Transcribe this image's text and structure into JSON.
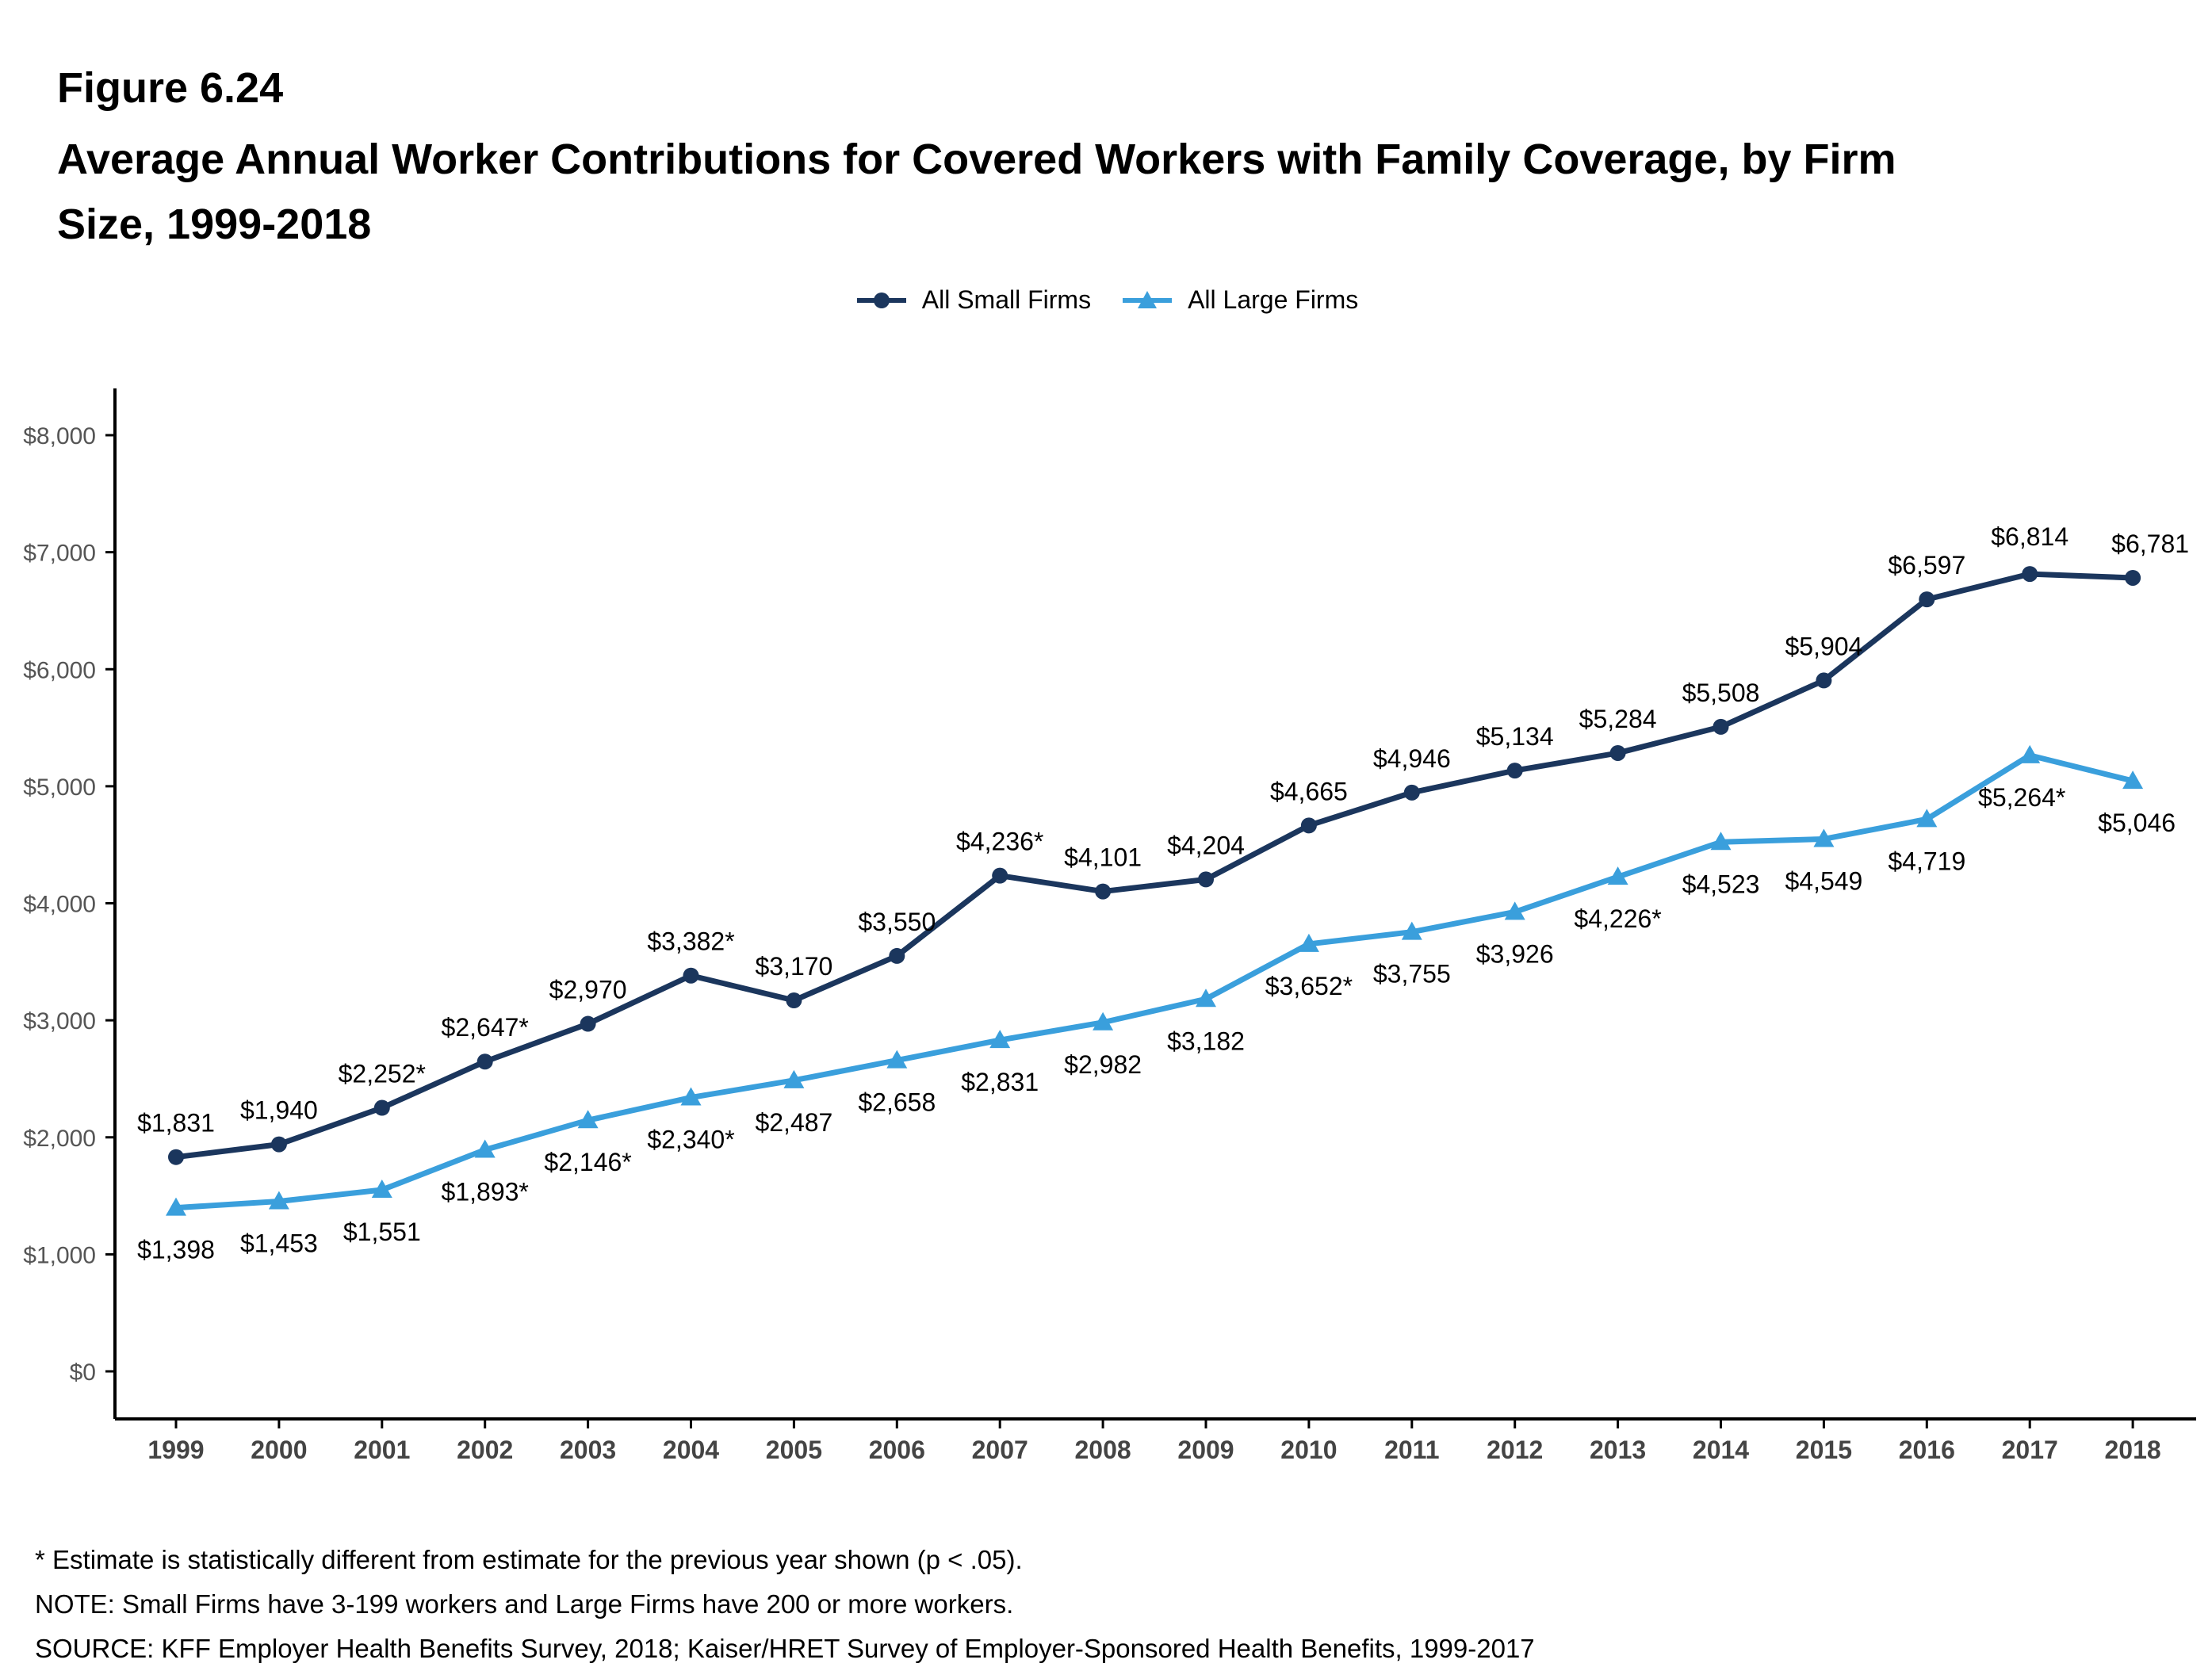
{
  "figure_label": "Figure 6.24",
  "title": "Average Annual Worker Contributions for Covered Workers with Family Coverage, by Firm Size, 1999-2018",
  "notes": [
    "* Estimate is statistically different from estimate for the previous year shown (p < .05).",
    "NOTE: Small Firms have 3-199 workers and Large Firms have 200 or more workers.",
    "SOURCE: KFF Employer Health Benefits Survey, 2018; Kaiser/HRET Survey of Employer-Sponsored Health Benefits, 1999-2017"
  ],
  "chart_data": {
    "type": "line",
    "x": [
      "1999",
      "2000",
      "2001",
      "2002",
      "2003",
      "2004",
      "2005",
      "2006",
      "2007",
      "2008",
      "2009",
      "2010",
      "2011",
      "2012",
      "2013",
      "2014",
      "2015",
      "2016",
      "2017",
      "2018"
    ],
    "y_ticks": [
      "$0",
      "$1,000",
      "$2,000",
      "$3,000",
      "$4,000",
      "$5,000",
      "$6,000",
      "$7,000",
      "$8,000"
    ],
    "ylim": [
      0,
      8000
    ],
    "grid": false,
    "legend_position": "top-center",
    "series": [
      {
        "name": "All Small Firms",
        "color": "#1b365d",
        "marker": "circle",
        "values": [
          1831,
          1940,
          2252,
          2647,
          2970,
          3382,
          3170,
          3550,
          4236,
          4101,
          4204,
          4665,
          4946,
          5134,
          5284,
          5508,
          5904,
          6597,
          6814,
          6781
        ],
        "labels": [
          "$1,831",
          "$1,940",
          "$2,252*",
          "$2,647*",
          "$2,970",
          "$3,382*",
          "$3,170",
          "$3,550",
          "$4,236*",
          "$4,101",
          "$4,204",
          "$4,665",
          "$4,946",
          "$5,134",
          "$5,284",
          "$5,508",
          "$5,904",
          "$6,597",
          "$6,814",
          "$6,781"
        ]
      },
      {
        "name": "All Large Firms",
        "color": "#3a9fdc",
        "marker": "triangle",
        "values": [
          1398,
          1453,
          1551,
          1893,
          2146,
          2340,
          2487,
          2658,
          2831,
          2982,
          3182,
          3652,
          3755,
          3926,
          4226,
          4523,
          4549,
          4719,
          5264,
          5046
        ],
        "labels": [
          "$1,398",
          "$1,453",
          "$1,551",
          "$1,893*",
          "$2,146*",
          "$2,340*",
          "$2,487",
          "$2,658",
          "$2,831",
          "$2,982",
          "$3,182",
          "$3,652*",
          "$3,755",
          "$3,926",
          "$4,226*",
          "$4,523",
          "$4,549",
          "$4,719",
          "$5,264*",
          "$5,046"
        ]
      }
    ]
  }
}
